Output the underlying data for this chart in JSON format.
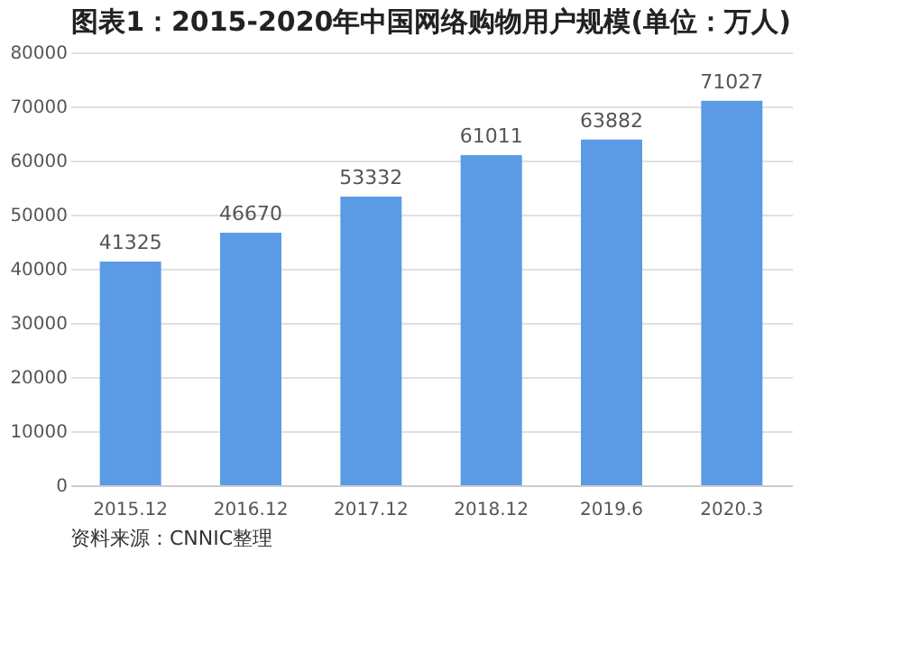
{
  "chart_data": {
    "type": "bar",
    "title": "图表1：2015-2020年中国网络购物用户规模(单位：万人)",
    "categories": [
      "2015.12",
      "2016.12",
      "2017.12",
      "2018.12",
      "2019.6",
      "2020.3"
    ],
    "values": [
      41325,
      46670,
      53332,
      61011,
      63882,
      71027
    ],
    "color": "#5b9be6",
    "ylim": [
      0,
      80000
    ],
    "yticks": [
      0,
      10000,
      20000,
      30000,
      40000,
      50000,
      60000,
      70000,
      80000
    ],
    "grid": "y",
    "data_labels": true,
    "annotations": [
      "资料来源：CNNIC整理"
    ]
  }
}
